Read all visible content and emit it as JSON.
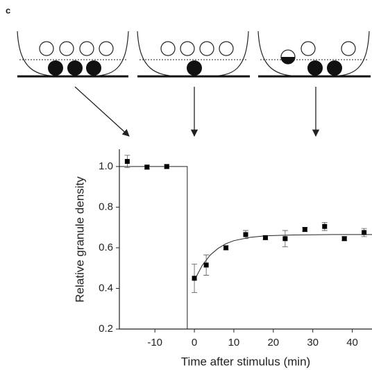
{
  "chart_data": {
    "type": "scatter",
    "panel_label": "c",
    "xlabel": "Time after stimulus (min)",
    "ylabel": "Relative granule density",
    "xlim": [
      -19,
      45
    ],
    "ylim": [
      0.2,
      1.085
    ],
    "xticks": [
      -10,
      0,
      10,
      20,
      30,
      40
    ],
    "yticks": [
      0.2,
      0.4,
      0.6,
      0.8,
      {
        "value": 1.0,
        "label": "1.0"
      }
    ],
    "series": [
      {
        "color": "#000000",
        "x": [
          -17,
          -12,
          -7,
          0,
          3,
          8,
          13,
          18,
          23,
          28,
          33,
          38,
          43
        ],
        "values": [
          1.025,
          0.997,
          1.0,
          0.45,
          0.515,
          0.6,
          0.665,
          0.65,
          0.645,
          0.69,
          0.705,
          0.645,
          0.675
        ],
        "errors": [
          0.03,
          0.01,
          0.01,
          0.07,
          0.05,
          0.01,
          0.02,
          0.01,
          0.04,
          0.01,
          0.02,
          0.01,
          0.02
        ]
      }
    ],
    "fits": [
      {
        "x": [
          -19,
          -1.8,
          -1.8
        ],
        "values": [
          1.0,
          1.0,
          0.2
        ]
      },
      {
        "x": [
          0,
          2,
          4,
          6,
          8,
          10,
          14,
          18,
          25,
          35,
          45
        ],
        "values": [
          0.44,
          0.514,
          0.564,
          0.597,
          0.62,
          0.635,
          0.651,
          0.659,
          0.663,
          0.665,
          0.665
        ]
      }
    ]
  }
}
